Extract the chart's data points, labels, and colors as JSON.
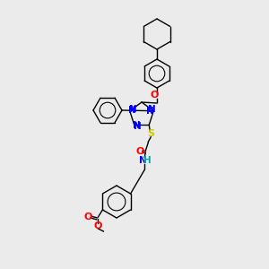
{
  "background_color": "#ebebeb",
  "bond_color": "#000000",
  "atom_colors": {
    "N": "#0000ff",
    "O": "#ff0000",
    "S": "#cccc00",
    "H": "#00aaaa",
    "C": "#000000"
  },
  "font_size": 7.5,
  "line_width": 1.0
}
